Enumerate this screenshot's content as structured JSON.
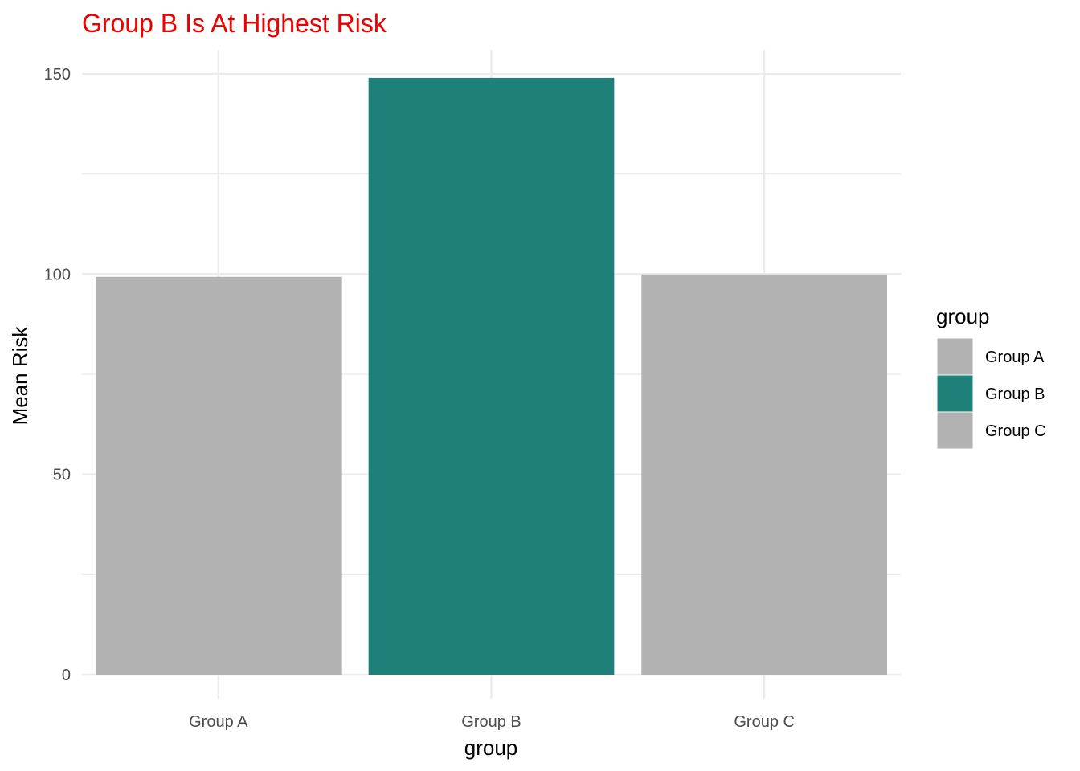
{
  "chart_data": {
    "type": "bar",
    "title": "Group B Is At Highest Risk",
    "title_color": "#ee0000",
    "categories": [
      "Group A",
      "Group B",
      "Group C"
    ],
    "values": [
      99.3,
      149,
      99.9
    ],
    "bar_colors": [
      "#b2b2b2",
      "#1f7f79",
      "#b2b2b2"
    ],
    "xlabel": "group",
    "ylabel": "Mean Risk",
    "ylim": [
      -6,
      156
    ],
    "yticks": [
      0,
      50,
      100,
      150
    ],
    "grid": true,
    "legend": {
      "title": "group",
      "position": "right",
      "entries": [
        {
          "label": "Group A",
          "color": "#b2b2b2"
        },
        {
          "label": "Group B",
          "color": "#1f7f79"
        },
        {
          "label": "Group C",
          "color": "#b2b2b2"
        }
      ]
    }
  }
}
